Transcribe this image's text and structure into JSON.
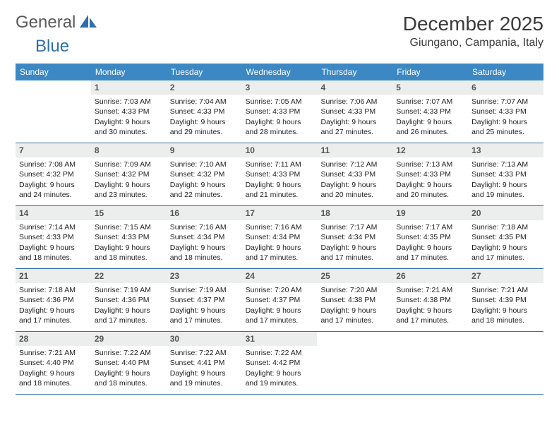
{
  "logo": {
    "part1": "General",
    "part2": "Blue"
  },
  "title": "December 2025",
  "location": "Giungano, Campania, Italy",
  "colors": {
    "header_bg": "#3b88c4",
    "rule": "#2f6fa9",
    "daynum_bg": "#eceded",
    "text": "#333333",
    "logo_gray": "#5a5a5a",
    "logo_blue": "#2f6fa9"
  },
  "weekdays": [
    "Sunday",
    "Monday",
    "Tuesday",
    "Wednesday",
    "Thursday",
    "Friday",
    "Saturday"
  ],
  "weeks": [
    [
      {
        "n": "",
        "sr": "",
        "ss": "",
        "d1": "",
        "d2": ""
      },
      {
        "n": "1",
        "sr": "Sunrise: 7:03 AM",
        "ss": "Sunset: 4:33 PM",
        "d1": "Daylight: 9 hours",
        "d2": "and 30 minutes."
      },
      {
        "n": "2",
        "sr": "Sunrise: 7:04 AM",
        "ss": "Sunset: 4:33 PM",
        "d1": "Daylight: 9 hours",
        "d2": "and 29 minutes."
      },
      {
        "n": "3",
        "sr": "Sunrise: 7:05 AM",
        "ss": "Sunset: 4:33 PM",
        "d1": "Daylight: 9 hours",
        "d2": "and 28 minutes."
      },
      {
        "n": "4",
        "sr": "Sunrise: 7:06 AM",
        "ss": "Sunset: 4:33 PM",
        "d1": "Daylight: 9 hours",
        "d2": "and 27 minutes."
      },
      {
        "n": "5",
        "sr": "Sunrise: 7:07 AM",
        "ss": "Sunset: 4:33 PM",
        "d1": "Daylight: 9 hours",
        "d2": "and 26 minutes."
      },
      {
        "n": "6",
        "sr": "Sunrise: 7:07 AM",
        "ss": "Sunset: 4:33 PM",
        "d1": "Daylight: 9 hours",
        "d2": "and 25 minutes."
      }
    ],
    [
      {
        "n": "7",
        "sr": "Sunrise: 7:08 AM",
        "ss": "Sunset: 4:32 PM",
        "d1": "Daylight: 9 hours",
        "d2": "and 24 minutes."
      },
      {
        "n": "8",
        "sr": "Sunrise: 7:09 AM",
        "ss": "Sunset: 4:32 PM",
        "d1": "Daylight: 9 hours",
        "d2": "and 23 minutes."
      },
      {
        "n": "9",
        "sr": "Sunrise: 7:10 AM",
        "ss": "Sunset: 4:32 PM",
        "d1": "Daylight: 9 hours",
        "d2": "and 22 minutes."
      },
      {
        "n": "10",
        "sr": "Sunrise: 7:11 AM",
        "ss": "Sunset: 4:33 PM",
        "d1": "Daylight: 9 hours",
        "d2": "and 21 minutes."
      },
      {
        "n": "11",
        "sr": "Sunrise: 7:12 AM",
        "ss": "Sunset: 4:33 PM",
        "d1": "Daylight: 9 hours",
        "d2": "and 20 minutes."
      },
      {
        "n": "12",
        "sr": "Sunrise: 7:13 AM",
        "ss": "Sunset: 4:33 PM",
        "d1": "Daylight: 9 hours",
        "d2": "and 20 minutes."
      },
      {
        "n": "13",
        "sr": "Sunrise: 7:13 AM",
        "ss": "Sunset: 4:33 PM",
        "d1": "Daylight: 9 hours",
        "d2": "and 19 minutes."
      }
    ],
    [
      {
        "n": "14",
        "sr": "Sunrise: 7:14 AM",
        "ss": "Sunset: 4:33 PM",
        "d1": "Daylight: 9 hours",
        "d2": "and 18 minutes."
      },
      {
        "n": "15",
        "sr": "Sunrise: 7:15 AM",
        "ss": "Sunset: 4:33 PM",
        "d1": "Daylight: 9 hours",
        "d2": "and 18 minutes."
      },
      {
        "n": "16",
        "sr": "Sunrise: 7:16 AM",
        "ss": "Sunset: 4:34 PM",
        "d1": "Daylight: 9 hours",
        "d2": "and 18 minutes."
      },
      {
        "n": "17",
        "sr": "Sunrise: 7:16 AM",
        "ss": "Sunset: 4:34 PM",
        "d1": "Daylight: 9 hours",
        "d2": "and 17 minutes."
      },
      {
        "n": "18",
        "sr": "Sunrise: 7:17 AM",
        "ss": "Sunset: 4:34 PM",
        "d1": "Daylight: 9 hours",
        "d2": "and 17 minutes."
      },
      {
        "n": "19",
        "sr": "Sunrise: 7:17 AM",
        "ss": "Sunset: 4:35 PM",
        "d1": "Daylight: 9 hours",
        "d2": "and 17 minutes."
      },
      {
        "n": "20",
        "sr": "Sunrise: 7:18 AM",
        "ss": "Sunset: 4:35 PM",
        "d1": "Daylight: 9 hours",
        "d2": "and 17 minutes."
      }
    ],
    [
      {
        "n": "21",
        "sr": "Sunrise: 7:18 AM",
        "ss": "Sunset: 4:36 PM",
        "d1": "Daylight: 9 hours",
        "d2": "and 17 minutes."
      },
      {
        "n": "22",
        "sr": "Sunrise: 7:19 AM",
        "ss": "Sunset: 4:36 PM",
        "d1": "Daylight: 9 hours",
        "d2": "and 17 minutes."
      },
      {
        "n": "23",
        "sr": "Sunrise: 7:19 AM",
        "ss": "Sunset: 4:37 PM",
        "d1": "Daylight: 9 hours",
        "d2": "and 17 minutes."
      },
      {
        "n": "24",
        "sr": "Sunrise: 7:20 AM",
        "ss": "Sunset: 4:37 PM",
        "d1": "Daylight: 9 hours",
        "d2": "and 17 minutes."
      },
      {
        "n": "25",
        "sr": "Sunrise: 7:20 AM",
        "ss": "Sunset: 4:38 PM",
        "d1": "Daylight: 9 hours",
        "d2": "and 17 minutes."
      },
      {
        "n": "26",
        "sr": "Sunrise: 7:21 AM",
        "ss": "Sunset: 4:38 PM",
        "d1": "Daylight: 9 hours",
        "d2": "and 17 minutes."
      },
      {
        "n": "27",
        "sr": "Sunrise: 7:21 AM",
        "ss": "Sunset: 4:39 PM",
        "d1": "Daylight: 9 hours",
        "d2": "and 18 minutes."
      }
    ],
    [
      {
        "n": "28",
        "sr": "Sunrise: 7:21 AM",
        "ss": "Sunset: 4:40 PM",
        "d1": "Daylight: 9 hours",
        "d2": "and 18 minutes."
      },
      {
        "n": "29",
        "sr": "Sunrise: 7:22 AM",
        "ss": "Sunset: 4:40 PM",
        "d1": "Daylight: 9 hours",
        "d2": "and 18 minutes."
      },
      {
        "n": "30",
        "sr": "Sunrise: 7:22 AM",
        "ss": "Sunset: 4:41 PM",
        "d1": "Daylight: 9 hours",
        "d2": "and 19 minutes."
      },
      {
        "n": "31",
        "sr": "Sunrise: 7:22 AM",
        "ss": "Sunset: 4:42 PM",
        "d1": "Daylight: 9 hours",
        "d2": "and 19 minutes."
      },
      {
        "n": "",
        "sr": "",
        "ss": "",
        "d1": "",
        "d2": ""
      },
      {
        "n": "",
        "sr": "",
        "ss": "",
        "d1": "",
        "d2": ""
      },
      {
        "n": "",
        "sr": "",
        "ss": "",
        "d1": "",
        "d2": ""
      }
    ]
  ]
}
